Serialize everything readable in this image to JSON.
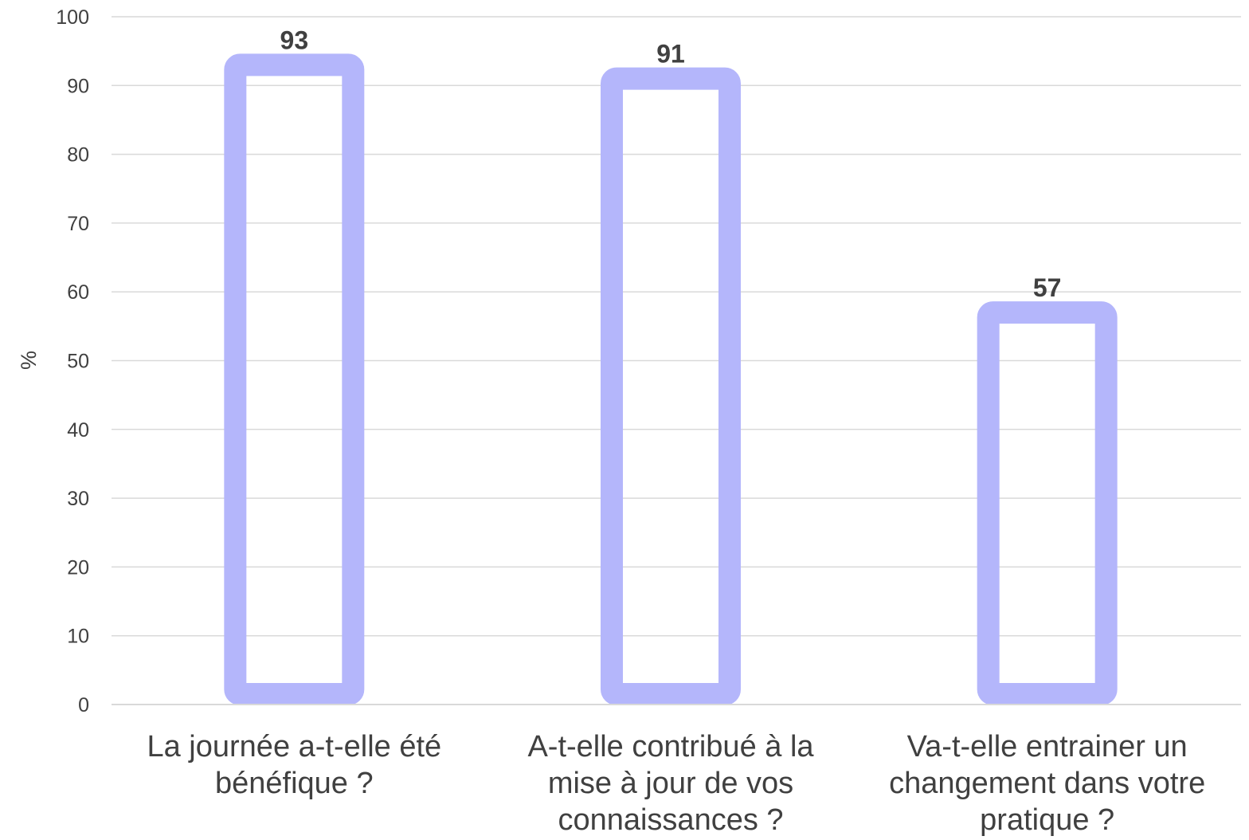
{
  "chart_data": {
    "type": "bar",
    "title": "",
    "xlabel": "",
    "ylabel": "%",
    "ylim": [
      0,
      100
    ],
    "yticks": [
      0,
      10,
      20,
      30,
      40,
      50,
      60,
      70,
      80,
      90,
      100
    ],
    "grid": true,
    "categories": [
      [
        "La journée a-t-elle été",
        "bénéfique ?"
      ],
      [
        "A-t-elle contribué à la",
        "mise à jour de vos",
        "connaissances ?"
      ],
      [
        "Va-t-elle entrainer un",
        "changement dans votre",
        "pratique ?"
      ]
    ],
    "values": [
      93,
      91,
      57
    ],
    "data_labels": [
      "93",
      "91",
      "57"
    ],
    "colors": {
      "bar_outline": "#b4b6fb",
      "grid": "#d9d9d9",
      "text": "#404040"
    }
  }
}
